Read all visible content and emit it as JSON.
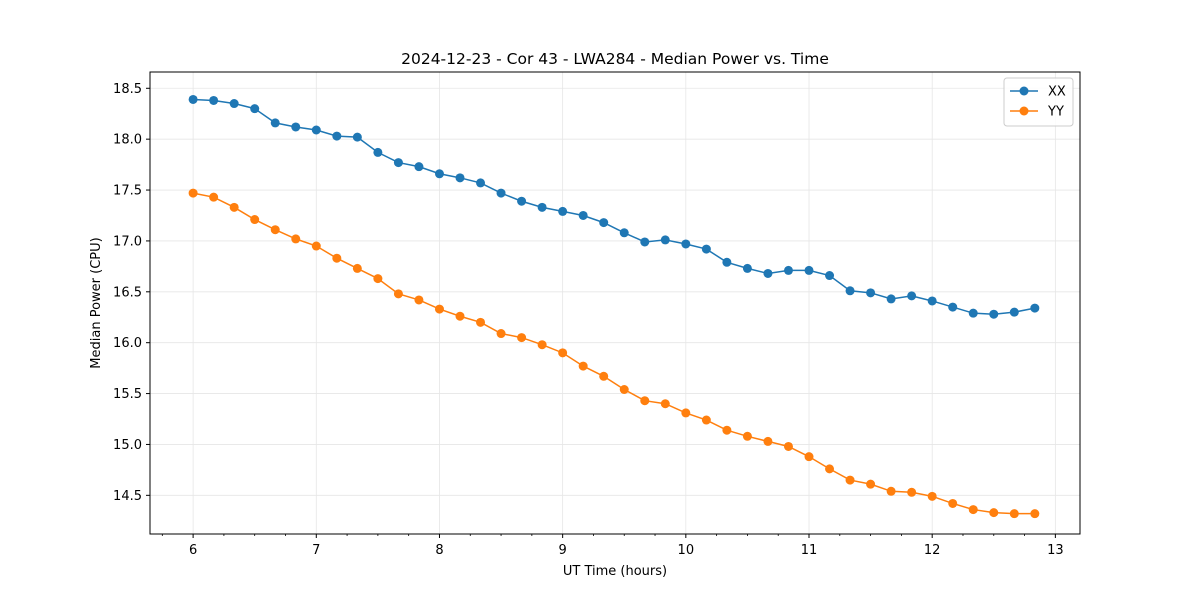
{
  "chart_data": {
    "type": "line",
    "title": "2024-12-23 - Cor 43 - LWA284 - Median Power vs. Time",
    "xlabel": "UT Time (hours)",
    "ylabel": "Median Power (CPU)",
    "xlim": [
      5.65,
      13.2
    ],
    "ylim": [
      14.12,
      18.66
    ],
    "xticks": [
      6,
      7,
      8,
      9,
      10,
      11,
      12,
      13
    ],
    "xtick_labels": [
      "6",
      "7",
      "8",
      "9",
      "10",
      "11",
      "12",
      "13"
    ],
    "yticks": [
      14.5,
      15.0,
      15.5,
      16.0,
      16.5,
      17.0,
      17.5,
      18.0,
      18.5
    ],
    "ytick_labels": [
      "14.5",
      "15.0",
      "15.5",
      "16.0",
      "16.5",
      "17.0",
      "17.5",
      "18.0",
      "18.5"
    ],
    "grid": true,
    "legend_position": "top-right",
    "x": [
      6.0,
      6.1667,
      6.3333,
      6.5,
      6.6667,
      6.8333,
      7.0,
      7.1667,
      7.3333,
      7.5,
      7.6667,
      7.8333,
      8.0,
      8.1667,
      8.3333,
      8.5,
      8.6667,
      8.8333,
      9.0,
      9.1667,
      9.3333,
      9.5,
      9.6667,
      9.8333,
      10.0,
      10.1667,
      10.3333,
      10.5,
      10.6667,
      10.8333,
      11.0,
      11.1667,
      11.3333,
      11.5,
      11.6667,
      11.8333,
      12.0,
      12.1667,
      12.3333,
      12.5,
      12.6667,
      12.8333
    ],
    "series": [
      {
        "name": "XX",
        "color": "#1f77b4",
        "values": [
          18.39,
          18.38,
          18.35,
          18.3,
          18.16,
          18.12,
          18.09,
          18.03,
          18.02,
          17.87,
          17.77,
          17.73,
          17.66,
          17.62,
          17.57,
          17.47,
          17.39,
          17.33,
          17.29,
          17.25,
          17.18,
          17.08,
          16.99,
          17.01,
          16.97,
          16.92,
          16.79,
          16.73,
          16.68,
          16.71,
          16.71,
          16.66,
          16.51,
          16.49,
          16.43,
          16.46,
          16.41,
          16.35,
          16.29,
          16.28,
          16.3,
          16.34
        ]
      },
      {
        "name": "YY",
        "color": "#ff7f0e",
        "values": [
          17.47,
          17.43,
          17.33,
          17.21,
          17.11,
          17.02,
          16.95,
          16.83,
          16.73,
          16.63,
          16.48,
          16.42,
          16.33,
          16.26,
          16.2,
          16.09,
          16.05,
          15.98,
          15.9,
          15.77,
          15.67,
          15.54,
          15.43,
          15.4,
          15.31,
          15.24,
          15.14,
          15.08,
          15.03,
          14.98,
          14.88,
          14.76,
          14.65,
          14.61,
          14.54,
          14.53,
          14.49,
          14.42,
          14.36,
          14.33,
          14.32,
          14.32
        ]
      }
    ]
  }
}
